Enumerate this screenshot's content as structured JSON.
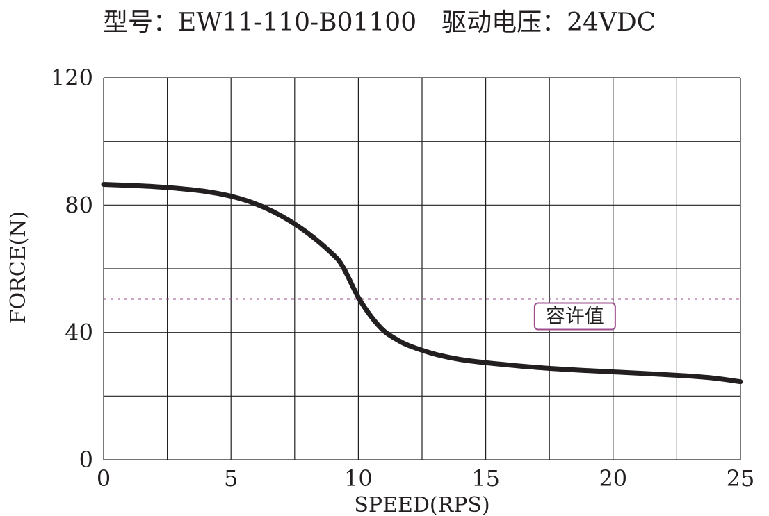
{
  "chart_data": {
    "type": "line",
    "title": "型号：EW11-110-B01100　驱动电压：24VDC",
    "xlabel": "SPEED(RPS)",
    "ylabel": "FORCE(N)",
    "xlim": [
      0,
      25
    ],
    "ylim": [
      0,
      120
    ],
    "x_ticks": [
      0,
      5,
      10,
      15,
      20,
      25
    ],
    "y_ticks": [
      0,
      40,
      80,
      120
    ],
    "x_grid": [
      0,
      2.5,
      5,
      7.5,
      10,
      12.5,
      15,
      17.5,
      20,
      22.5,
      25
    ],
    "y_grid": [
      0,
      20,
      40,
      60,
      80,
      100,
      120
    ],
    "grid": true,
    "series": [
      {
        "color": "#231f20",
        "x": [
          0,
          1,
          2,
          3,
          4,
          5,
          6,
          7,
          8,
          9,
          9.4,
          10,
          10.5,
          11,
          11.5,
          12,
          13,
          14,
          15,
          17,
          19,
          21,
          23,
          24,
          25
        ],
        "y": [
          86.5,
          86.2,
          85.8,
          85.2,
          84.3,
          82.8,
          80.3,
          76.5,
          71.3,
          64.5,
          60.5,
          51,
          45,
          40.5,
          37.8,
          35.8,
          33.2,
          31.5,
          30.5,
          29,
          28,
          27.2,
          26.3,
          25.6,
          24.5
        ]
      }
    ],
    "reference_line": {
      "y": 50.5,
      "style": "dashed",
      "color": "#9c4d8e",
      "label": "容许值",
      "label_at_x": 18.5
    }
  }
}
